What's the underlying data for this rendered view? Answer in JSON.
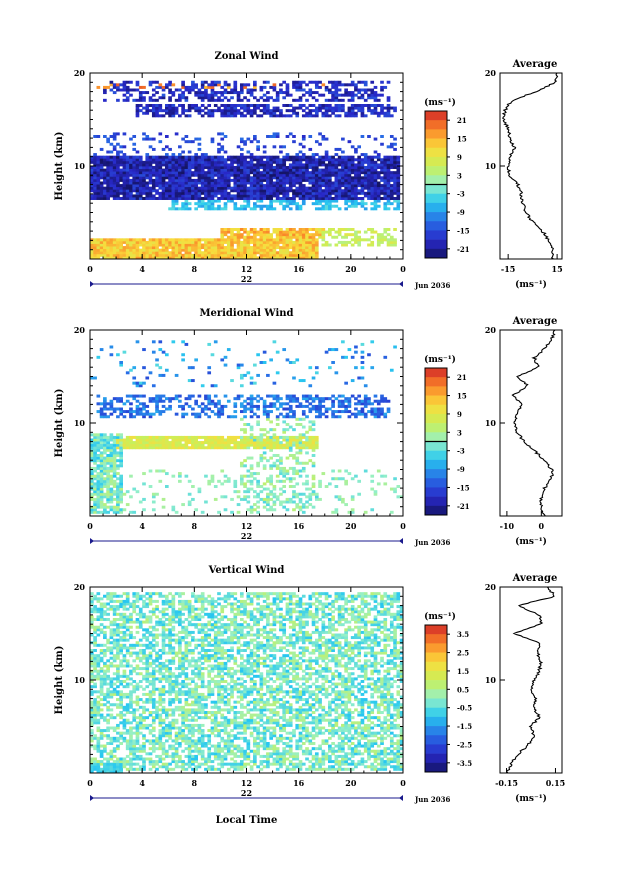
{
  "chart_data": [
    {
      "type": "heatmap",
      "title": "Zonal Wind",
      "ylabel": "Height (km)",
      "xlabel": "",
      "date_label": "22",
      "month_label": "Jun 2036",
      "xticks": [
        "0",
        "4",
        "8",
        "12",
        "16",
        "20",
        "0"
      ],
      "yticks": [
        "20",
        "10"
      ],
      "xlim": [
        0,
        24
      ],
      "ylim": [
        0,
        20
      ],
      "colorbar": {
        "unit_label": "(ms⁻¹)",
        "ticks": [
          "21",
          "15",
          "9",
          "3",
          "-3",
          "-9",
          "-15",
          "-21"
        ],
        "range": [
          -24,
          24
        ],
        "zero_line": true
      },
      "layers": [
        {
          "hmin": 16.9,
          "hmax": 19.2,
          "tmin": 1.0,
          "tmax": 23.0,
          "vmin": -22,
          "vmax": -14,
          "density": 0.45
        },
        {
          "hmin": 15.4,
          "hmax": 16.8,
          "tmin": 3.5,
          "tmax": 23.5,
          "vmin": -22,
          "vmax": -15,
          "density": 0.7
        },
        {
          "hmin": 11.0,
          "hmax": 13.5,
          "tmin": 0.0,
          "tmax": 23.5,
          "vmin": -18,
          "vmax": -12,
          "density": 0.2
        },
        {
          "hmin": 6.5,
          "hmax": 11.0,
          "tmin": 0.0,
          "tmax": 23.8,
          "vmin": -24,
          "vmax": -15,
          "density": 0.93
        },
        {
          "hmin": 5.3,
          "hmax": 6.5,
          "tmin": 6.0,
          "tmax": 23.8,
          "vmin": -9,
          "vmax": -3,
          "density": 0.5
        },
        {
          "hmin": 0.1,
          "hmax": 2.2,
          "tmin": 0.0,
          "tmax": 17.5,
          "vmin": 9,
          "vmax": 17,
          "density": 0.95
        },
        {
          "hmin": 2.2,
          "hmax": 3.4,
          "tmin": 10.0,
          "tmax": 18.0,
          "vmin": 10,
          "vmax": 18,
          "density": 0.9
        },
        {
          "hmin": 1.3,
          "hmax": 3.4,
          "tmin": 17.5,
          "tmax": 23.5,
          "vmin": 3,
          "vmax": 9,
          "density": 0.55
        },
        {
          "hmin": 18.3,
          "hmax": 19.0,
          "tmin": 0.0,
          "tmax": 18.5,
          "vmin": 14,
          "vmax": 21,
          "density": 0.15
        }
      ],
      "average": {
        "title": "Average",
        "xlabel": "(ms⁻¹)",
        "xticks": [
          "-15",
          "15"
        ],
        "xlim": [
          -20,
          18
        ],
        "yticks": [
          "20",
          "10"
        ],
        "heights": [
          0,
          1,
          2,
          3,
          4,
          5,
          6,
          7,
          8,
          9,
          10,
          11,
          12,
          13,
          14,
          15,
          16,
          17,
          18,
          19,
          20
        ],
        "values": [
          12,
          12,
          10,
          6,
          0,
          -4,
          -6,
          -7,
          -9,
          -14,
          -15,
          -14,
          -11,
          -14,
          -15,
          -18,
          -17,
          -13,
          2,
          14,
          15
        ]
      }
    },
    {
      "type": "heatmap",
      "title": "Meridional Wind",
      "ylabel": "Height (km)",
      "xlabel": "",
      "date_label": "22",
      "month_label": "Jun 2036",
      "xticks": [
        "0",
        "4",
        "8",
        "12",
        "16",
        "20",
        "0"
      ],
      "yticks": [
        "20",
        "10"
      ],
      "xlim": [
        0,
        24
      ],
      "ylim": [
        0,
        20
      ],
      "colorbar": {
        "unit_label": "(ms⁻¹)",
        "ticks": [
          "21",
          "15",
          "9",
          "3",
          "-3",
          "-9",
          "-15",
          "-21"
        ],
        "range": [
          -24,
          24
        ],
        "zero_line": true
      },
      "layers": [
        {
          "hmin": 14.0,
          "hmax": 19.0,
          "tmin": 0.0,
          "tmax": 23.5,
          "vmin": -15,
          "vmax": -3,
          "density": 0.07
        },
        {
          "hmin": 10.5,
          "hmax": 13.0,
          "tmin": 0.5,
          "tmax": 23.0,
          "vmin": -16,
          "vmax": -8,
          "density": 0.45
        },
        {
          "hmin": 7.2,
          "hmax": 8.6,
          "tmin": 2.0,
          "tmax": 17.5,
          "vmin": 5,
          "vmax": 11,
          "density": 0.93
        },
        {
          "hmin": 0.2,
          "hmax": 9.0,
          "tmin": 0.0,
          "tmax": 2.5,
          "vmin": -6,
          "vmax": 4,
          "density": 0.8
        },
        {
          "hmin": 0.5,
          "hmax": 10.5,
          "tmin": 11.5,
          "tmax": 17.5,
          "vmin": -4,
          "vmax": 5,
          "density": 0.3
        },
        {
          "hmin": 0.2,
          "hmax": 5.0,
          "tmin": 2.5,
          "tmax": 24.0,
          "vmin": -3,
          "vmax": 3,
          "density": 0.12
        }
      ],
      "average": {
        "title": "Average",
        "xlabel": "(ms⁻¹)",
        "xticks": [
          "-10",
          "0"
        ],
        "xlim": [
          -12,
          6
        ],
        "yticks": [
          "20",
          "10"
        ],
        "heights": [
          0,
          1,
          2,
          3,
          4,
          5,
          6,
          7,
          8,
          9,
          10,
          11,
          12,
          13,
          14,
          15,
          16,
          17,
          18,
          19,
          20
        ],
        "values": [
          1,
          0,
          0,
          1,
          3,
          3,
          1,
          -2,
          -5,
          -7,
          -8,
          -7,
          -6,
          -8,
          -4,
          -7,
          -1,
          -2,
          1,
          3,
          4
        ]
      }
    },
    {
      "type": "heatmap",
      "title": "Vertical Wind",
      "ylabel": "Height (km)",
      "xlabel": "Local Time",
      "date_label": "22",
      "month_label": "Jun 2036",
      "xticks": [
        "0",
        "4",
        "8",
        "12",
        "16",
        "20",
        "0"
      ],
      "yticks": [
        "20",
        "10"
      ],
      "xlim": [
        0,
        24
      ],
      "ylim": [
        0,
        20
      ],
      "colorbar": {
        "unit_label": "(ms⁻¹)",
        "ticks": [
          "3.5",
          "2.5",
          "1.5",
          "0.5",
          "-0.5",
          "-1.5",
          "-2.5",
          "-3.5"
        ],
        "range": [
          -4,
          4
        ],
        "zero_line": false
      },
      "layers": [
        {
          "hmin": 0.3,
          "hmax": 19.5,
          "tmin": 0.0,
          "tmax": 24.0,
          "vmin": -1.0,
          "vmax": 0.7,
          "density": 0.6
        },
        {
          "hmin": 0.0,
          "hmax": 1.2,
          "tmin": 0.0,
          "tmax": 2.5,
          "vmin": -1.0,
          "vmax": -0.5,
          "density": 0.95
        }
      ],
      "average": {
        "title": "Average",
        "xlabel": "(ms⁻¹)",
        "xticks": [
          "-0.15",
          "0.15"
        ],
        "xlim": [
          -0.19,
          0.19
        ],
        "yticks": [
          "20",
          "10"
        ],
        "heights": [
          0,
          1,
          2,
          3,
          4,
          5,
          6,
          7,
          8,
          9,
          10,
          11,
          12,
          13,
          14,
          15,
          16,
          17,
          18,
          19,
          20
        ],
        "values": [
          -0.15,
          -0.12,
          -0.08,
          -0.02,
          0.02,
          0.0,
          0.05,
          0.02,
          0.03,
          0.0,
          0.02,
          0.05,
          0.06,
          0.04,
          0.05,
          -0.1,
          0.06,
          0.05,
          -0.08,
          0.15,
          0.1
        ]
      }
    }
  ]
}
